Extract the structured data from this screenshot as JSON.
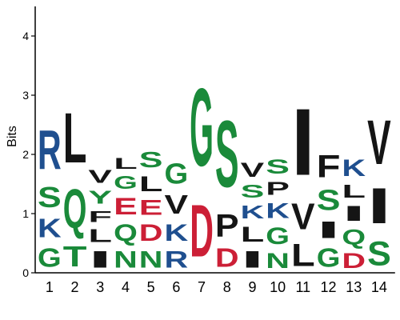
{
  "chart_data": {
    "type": "sequence-logo",
    "ylabel": "Bits",
    "ylim": [
      0,
      4.5
    ],
    "yticks": [
      0,
      1,
      2,
      3,
      4
    ],
    "colors": {
      "G": "#1a8a3a",
      "S": "#1a8a3a",
      "T": "#1a8a3a",
      "Q": "#1a8a3a",
      "N": "#1a8a3a",
      "Y": "#1a8a3a",
      "R": "#1f4f8f",
      "K": "#1f4f8f",
      "E": "#cc1f36",
      "D": "#cc1f36",
      "L": "#151515",
      "V": "#151515",
      "I": "#151515",
      "F": "#151515",
      "P": "#151515",
      "M": "#151515",
      "A": "#151515",
      "W": "#151515"
    },
    "positions": [
      {
        "label": "1",
        "letters": [
          {
            "char": "G",
            "bits": 0.5
          },
          {
            "char": "K",
            "bits": 0.5
          },
          {
            "char": "S",
            "bits": 0.55
          },
          {
            "char": "R",
            "bits": 1.05
          }
        ]
      },
      {
        "label": "2",
        "letters": [
          {
            "char": "T",
            "bits": 0.55
          },
          {
            "char": "Q",
            "bits": 1.05
          },
          {
            "char": "L",
            "bits": 1.35
          }
        ]
      },
      {
        "label": "3",
        "letters": [
          {
            "char": "I",
            "bits": 0.45
          },
          {
            "char": "L",
            "bits": 0.35
          },
          {
            "char": "F",
            "bits": 0.3
          },
          {
            "char": "Y",
            "bits": 0.35
          },
          {
            "char": "V",
            "bits": 0.35
          }
        ]
      },
      {
        "label": "4",
        "letters": [
          {
            "char": "N",
            "bits": 0.45
          },
          {
            "char": "Q",
            "bits": 0.45
          },
          {
            "char": "E",
            "bits": 0.45
          },
          {
            "char": "G",
            "bits": 0.35
          },
          {
            "char": "L",
            "bits": 0.3
          }
        ]
      },
      {
        "label": "5",
        "letters": [
          {
            "char": "N",
            "bits": 0.45
          },
          {
            "char": "D",
            "bits": 0.45
          },
          {
            "char": "E",
            "bits": 0.4
          },
          {
            "char": "L",
            "bits": 0.4
          },
          {
            "char": "S",
            "bits": 0.42
          }
        ]
      },
      {
        "label": "6",
        "letters": [
          {
            "char": "R",
            "bits": 0.45
          },
          {
            "char": "K",
            "bits": 0.45
          },
          {
            "char": "V",
            "bits": 0.5
          },
          {
            "char": "G",
            "bits": 0.55
          }
        ]
      },
      {
        "label": "7",
        "letters": [
          {
            "char": "D",
            "bits": 1.4
          },
          {
            "char": "G",
            "bits": 2.1
          }
        ]
      },
      {
        "label": "8",
        "letters": [
          {
            "char": "D",
            "bits": 0.5
          },
          {
            "char": "P",
            "bits": 0.6
          },
          {
            "char": "S",
            "bits": 1.8
          }
        ]
      },
      {
        "label": "9",
        "letters": [
          {
            "char": "I",
            "bits": 0.45
          },
          {
            "char": "L",
            "bits": 0.4
          },
          {
            "char": "K",
            "bits": 0.35
          },
          {
            "char": "S",
            "bits": 0.35
          },
          {
            "char": "V",
            "bits": 0.38
          }
        ]
      },
      {
        "label": "10",
        "letters": [
          {
            "char": "N",
            "bits": 0.4
          },
          {
            "char": "G",
            "bits": 0.45
          },
          {
            "char": "K",
            "bits": 0.4
          },
          {
            "char": "P",
            "bits": 0.35
          },
          {
            "char": "S",
            "bits": 0.38
          }
        ]
      },
      {
        "label": "11",
        "letters": [
          {
            "char": "L",
            "bits": 0.6
          },
          {
            "char": "V",
            "bits": 0.7
          },
          {
            "char": "I",
            "bits": 1.8
          }
        ]
      },
      {
        "label": "12",
        "letters": [
          {
            "char": "G",
            "bits": 0.5
          },
          {
            "char": "I",
            "bits": 0.45
          },
          {
            "char": "S",
            "bits": 0.55
          },
          {
            "char": "F",
            "bits": 0.6
          }
        ]
      },
      {
        "label": "13",
        "letters": [
          {
            "char": "D",
            "bits": 0.4
          },
          {
            "char": "Q",
            "bits": 0.4
          },
          {
            "char": "I",
            "bits": 0.4
          },
          {
            "char": "L",
            "bits": 0.35
          },
          {
            "char": "K",
            "bits": 0.45
          }
        ]
      },
      {
        "label": "14",
        "letters": [
          {
            "char": "S",
            "bits": 0.65
          },
          {
            "char": "I",
            "bits": 0.95
          },
          {
            "char": "V",
            "bits": 1.2
          }
        ]
      }
    ]
  }
}
